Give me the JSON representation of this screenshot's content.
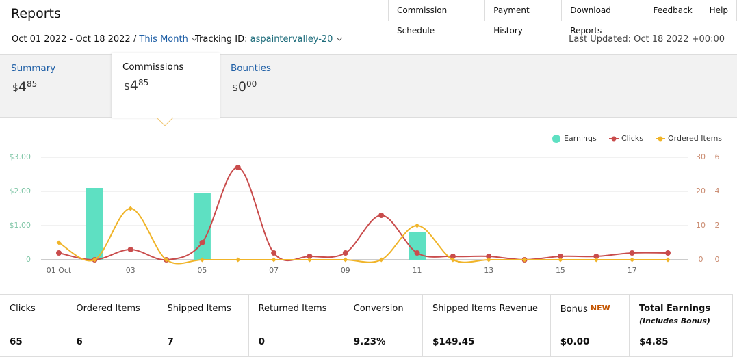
{
  "header": {
    "title": "Reports",
    "nav": [
      "Commission Schedule",
      "Payment History",
      "Download Reports",
      "Feedback",
      "Help"
    ],
    "date_range": "Oct 01 2022 - Oct 18 2022",
    "separator": "/",
    "period": "This Month",
    "tracking_label": "Tracking ID:",
    "tracking_id": "aspaintervalley-20",
    "last_updated": "Last Updated: Oct 18 2022 +00:00"
  },
  "tabs": [
    {
      "label": "Summary",
      "currency": "$",
      "whole": "4",
      "fraction": "85"
    },
    {
      "label": "Commissions",
      "currency": "$",
      "whole": "4",
      "fraction": "85"
    },
    {
      "label": "Bounties",
      "currency": "$",
      "whole": "0",
      "fraction": "00"
    }
  ],
  "chart_data": {
    "type": "combo",
    "categories": [
      "01 Oct",
      null,
      "03",
      null,
      "05",
      null,
      "07",
      null,
      "09",
      null,
      "11",
      null,
      "13",
      null,
      "15",
      null,
      "17",
      null
    ],
    "series": [
      {
        "name": "Earnings",
        "type": "bar",
        "color": "#5ee0c2",
        "axis": "y",
        "values": [
          0,
          2.1,
          0,
          0,
          1.95,
          0,
          0,
          0,
          0,
          0,
          0.8,
          0,
          0,
          0,
          0,
          0,
          0,
          0
        ]
      },
      {
        "name": "Clicks",
        "type": "line",
        "color": "#c94c4c",
        "axis": "y2",
        "values": [
          2,
          0,
          3,
          0,
          5,
          27,
          2,
          1,
          2,
          13,
          2,
          1,
          1,
          0,
          1,
          1,
          2,
          2
        ]
      },
      {
        "name": "Ordered Items",
        "type": "line",
        "color": "#f0b429",
        "axis": "y3",
        "values": [
          1,
          0,
          3,
          0,
          0,
          0,
          0,
          0,
          0,
          0,
          2,
          0,
          0,
          0,
          0,
          0,
          0,
          0
        ]
      }
    ],
    "ylim": [
      0,
      3
    ],
    "yticks": [
      {
        "value": 0,
        "label": "0"
      },
      {
        "value": 1,
        "label": "$1.00"
      },
      {
        "value": 2,
        "label": "$2.00"
      },
      {
        "value": 3,
        "label": "$3.00"
      }
    ],
    "y2lim": [
      0,
      30
    ],
    "y2ticks": [
      0,
      10,
      20,
      30
    ],
    "y3lim": [
      0,
      6
    ],
    "y3ticks": [
      0,
      2,
      4,
      6
    ],
    "grid": true,
    "legend": "top-right"
  },
  "stats": [
    {
      "label": "Clicks",
      "value": "65"
    },
    {
      "label": "Ordered Items",
      "value": "6"
    },
    {
      "label": "Shipped Items",
      "value": "7"
    },
    {
      "label": "Returned Items",
      "value": "0"
    },
    {
      "label": "Conversion",
      "value": "9.23%"
    },
    {
      "label": "Shipped Items Revenue",
      "value": "$149.45"
    },
    {
      "label": "Bonus",
      "badge": "NEW",
      "value": "$0.00"
    },
    {
      "label": "Total Earnings",
      "note": "(Includes Bonus)",
      "value": "$4.85"
    }
  ]
}
